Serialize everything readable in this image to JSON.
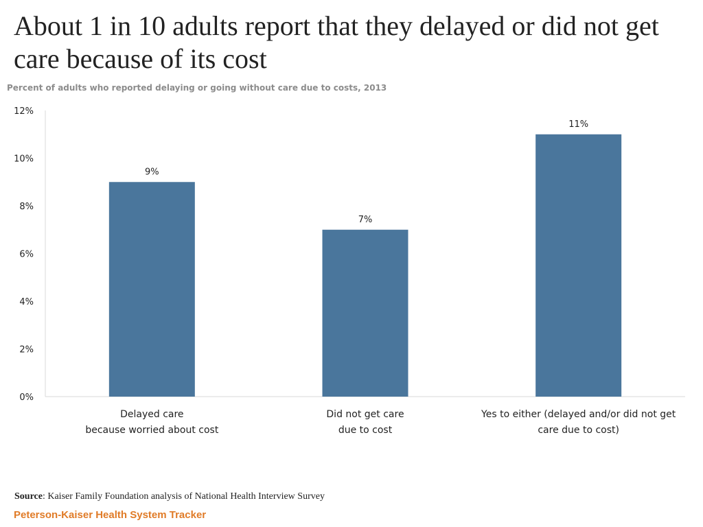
{
  "title": "About 1 in 10 adults report that they delayed or did not get care because of its cost",
  "subtitle": "Percent of adults who reported delaying or going without care due to costs, 2013",
  "chart_data": {
    "type": "bar",
    "categories": [
      [
        "Delayed care",
        "because worried about cost"
      ],
      [
        "Did not get care",
        "due to cost"
      ],
      [
        "Yes to either (delayed and/or did not get",
        "care due to cost)"
      ]
    ],
    "values": [
      9,
      7,
      11
    ],
    "data_labels": [
      "9%",
      "7%",
      "11%"
    ],
    "ylim": [
      0,
      12
    ],
    "yticks": [
      0,
      2,
      4,
      6,
      8,
      10,
      12
    ],
    "ytick_labels": [
      "0%",
      "2%",
      "4%",
      "6%",
      "8%",
      "10%",
      "12%"
    ],
    "grid": false,
    "legend": "none",
    "bar_color": "#4a769c",
    "xlabel": "",
    "ylabel": ""
  },
  "source": {
    "label": "Source",
    "text": ": Kaiser Family Foundation analysis of National Health Interview Survey"
  },
  "brand": {
    "text": "Peterson-Kaiser Health System Tracker",
    "color": "#e07b27"
  }
}
